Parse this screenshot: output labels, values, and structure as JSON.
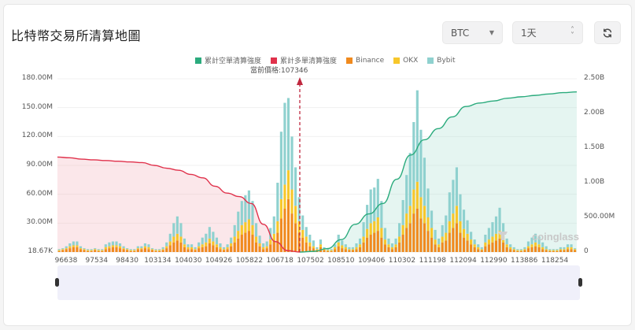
{
  "header": {
    "title": "比特幣交易所清算地圖",
    "coin_select": {
      "value": "BTC",
      "icon": "chevron-down-icon"
    },
    "timeframe_select": {
      "value": "1天",
      "icon": "up-down-stepper-icon"
    },
    "refresh_button": {
      "icon": "refresh-icon"
    }
  },
  "legend": [
    {
      "label": "累計空單清算強度",
      "color": "#2bab7d"
    },
    {
      "label": "累計多單清算強度",
      "color": "#e0314b"
    },
    {
      "label": "Binance",
      "color": "#f08a1e"
    },
    {
      "label": "OKX",
      "color": "#f7c72b"
    },
    {
      "label": "Bybit",
      "color": "#8fd1cf"
    }
  ],
  "current_price_label": "當前價格:107346",
  "watermark": "coinglass",
  "chart_data": {
    "type": "bar",
    "title": "比特幣交易所清算地圖",
    "xlabel": "",
    "ylabel": "",
    "y_left_ticks": [
      "18.67K",
      "30.00M",
      "60.00M",
      "90.00M",
      "120.00M",
      "150.00M",
      "180.00M"
    ],
    "y_right_ticks": [
      "0",
      "500.00M",
      "1.00B",
      "1.50B",
      "2.00B",
      "2.50B"
    ],
    "ylim_left": [
      0,
      180000000
    ],
    "ylim_right": [
      0,
      2500000000
    ],
    "x_tick_labels": [
      "96638",
      "97534",
      "98430",
      "103134",
      "104030",
      "104926",
      "105822",
      "106718",
      "107502",
      "108510",
      "109406",
      "110302",
      "111198",
      "112094",
      "112990",
      "113886",
      "118254"
    ],
    "current_price": 107346,
    "grid": true,
    "legend_position": "top",
    "series": [
      {
        "name": "Binance",
        "type": "bar",
        "stack": "ex",
        "color": "#f08a1e",
        "values": [
          1,
          2,
          3,
          4,
          5,
          5,
          3,
          2,
          1,
          1,
          2,
          1,
          1,
          3,
          4,
          5,
          5,
          4,
          3,
          2,
          1,
          1,
          3,
          3,
          4,
          3,
          2,
          1,
          1,
          2,
          4,
          7,
          10,
          12,
          10,
          5,
          3,
          3,
          2,
          4,
          5,
          6,
          9,
          7,
          5,
          3,
          2,
          3,
          6,
          10,
          14,
          18,
          20,
          22,
          18,
          10,
          6,
          3,
          4,
          8,
          12,
          20,
          35,
          45,
          55,
          40,
          30,
          20,
          15,
          10,
          6,
          4,
          2,
          5,
          2,
          1,
          1,
          3,
          6,
          4,
          3,
          2,
          2,
          3,
          5,
          10,
          15,
          18,
          20,
          22,
          15,
          8,
          5,
          3,
          5,
          10,
          18,
          25,
          30,
          40,
          45,
          35,
          30,
          22,
          15,
          8,
          5,
          10,
          12,
          20,
          25,
          30,
          20,
          15,
          12,
          8,
          5,
          3,
          2,
          6,
          8,
          10,
          12,
          14,
          10,
          5,
          3,
          2,
          1,
          1,
          2,
          4,
          5,
          6,
          5,
          3,
          2,
          1,
          1,
          1,
          2,
          2,
          3,
          3,
          2
        ]
      },
      {
        "name": "OKX",
        "type": "bar",
        "stack": "ex",
        "color": "#f7c72b",
        "values": [
          1,
          1,
          1,
          2,
          2,
          2,
          1,
          1,
          1,
          1,
          1,
          1,
          1,
          2,
          2,
          2,
          2,
          2,
          1,
          1,
          1,
          1,
          1,
          1,
          2,
          2,
          1,
          1,
          1,
          1,
          2,
          4,
          6,
          7,
          6,
          3,
          2,
          2,
          1,
          2,
          3,
          4,
          5,
          4,
          3,
          2,
          1,
          2,
          3,
          6,
          8,
          10,
          11,
          12,
          10,
          6,
          3,
          2,
          2,
          5,
          7,
          12,
          20,
          25,
          30,
          25,
          18,
          12,
          8,
          6,
          4,
          2,
          1,
          3,
          1,
          1,
          1,
          2,
          4,
          3,
          2,
          1,
          1,
          2,
          3,
          6,
          9,
          12,
          12,
          14,
          10,
          5,
          3,
          2,
          3,
          6,
          10,
          15,
          18,
          25,
          28,
          22,
          18,
          14,
          10,
          5,
          3,
          6,
          8,
          12,
          15,
          18,
          12,
          9,
          7,
          5,
          3,
          2,
          1,
          4,
          5,
          6,
          7,
          8,
          6,
          3,
          2,
          1,
          1,
          1,
          1,
          2,
          3,
          4,
          3,
          2,
          1,
          1,
          1,
          1,
          1,
          1,
          2,
          2,
          1
        ]
      },
      {
        "name": "Bybit",
        "type": "bar",
        "stack": "ex",
        "color": "#8fd1cf",
        "values": [
          1,
          1,
          2,
          3,
          4,
          4,
          2,
          1,
          1,
          1,
          1,
          1,
          1,
          3,
          4,
          4,
          4,
          3,
          2,
          1,
          1,
          1,
          2,
          2,
          3,
          3,
          1,
          1,
          1,
          2,
          4,
          8,
          14,
          18,
          14,
          6,
          3,
          3,
          2,
          4,
          7,
          9,
          12,
          10,
          7,
          4,
          2,
          3,
          6,
          12,
          20,
          25,
          28,
          30,
          25,
          14,
          8,
          4,
          5,
          12,
          18,
          40,
          70,
          85,
          75,
          55,
          40,
          25,
          15,
          10,
          8,
          6,
          2,
          5,
          2,
          1,
          1,
          3,
          8,
          5,
          3,
          2,
          2,
          4,
          6,
          15,
          25,
          35,
          35,
          40,
          28,
          12,
          6,
          4,
          6,
          14,
          26,
          40,
          55,
          70,
          95,
          70,
          50,
          30,
          18,
          10,
          6,
          12,
          18,
          30,
          35,
          40,
          28,
          20,
          14,
          8,
          5,
          3,
          2,
          8,
          12,
          15,
          18,
          24,
          14,
          6,
          3,
          2,
          1,
          1,
          2,
          5,
          7,
          9,
          8,
          5,
          3,
          1,
          1,
          1,
          2,
          2,
          3,
          3,
          1
        ]
      },
      {
        "name": "累計多單清算強度",
        "type": "area",
        "axis": "right",
        "color": "#e0314b",
        "x_range": [
          "96638",
          "107346"
        ],
        "values": [
          1370000000.0,
          1360000000.0,
          1340000000.0,
          1330000000.0,
          1320000000.0,
          1310000000.0,
          1300000000.0,
          1290000000.0,
          1250000000.0,
          1210000000.0,
          1180000000.0,
          1120000000.0,
          1070000000.0,
          950000000.0,
          850000000.0,
          800000000.0,
          700000000.0,
          400000000.0,
          150000000.0,
          20000000.0,
          0
        ]
      },
      {
        "name": "累計空單清算強度",
        "type": "area",
        "axis": "right",
        "color": "#2bab7d",
        "x_range": [
          "107346",
          "118254"
        ],
        "values": [
          0,
          10000000.0,
          50000000.0,
          180000000.0,
          400000000.0,
          550000000.0,
          700000000.0,
          1050000000.0,
          1400000000.0,
          1620000000.0,
          1780000000.0,
          1950000000.0,
          2100000000.0,
          2150000000.0,
          2180000000.0,
          2220000000.0,
          2240000000.0,
          2260000000.0,
          2280000000.0,
          2300000000.0,
          2310000000.0
        ]
      }
    ]
  }
}
